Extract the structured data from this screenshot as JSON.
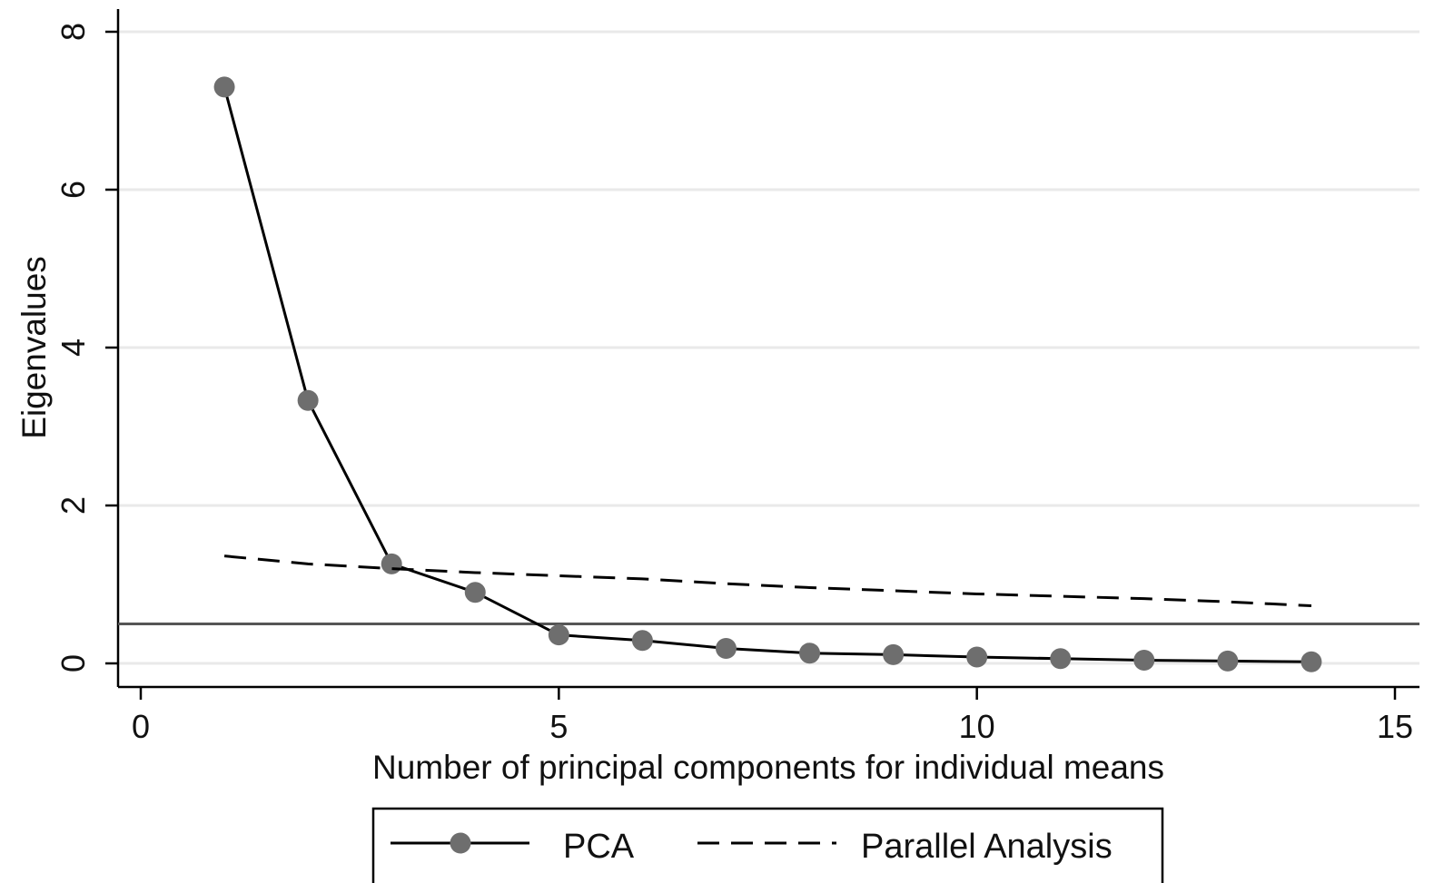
{
  "chart_data": {
    "type": "line",
    "title": "",
    "xlabel": "Number of principal components for individual means",
    "ylabel": "Eigenvalues",
    "xlim": [
      0,
      15
    ],
    "ylim": [
      0,
      8
    ],
    "xticks": [
      0,
      5,
      10,
      15
    ],
    "yticks": [
      0,
      2,
      4,
      6,
      8
    ],
    "xtick_labels": [
      "0",
      "5",
      "10",
      "15"
    ],
    "ytick_labels": [
      "0",
      "2",
      "4",
      "6",
      "8"
    ],
    "grid": "horizontal",
    "legend_position": "bottom",
    "reference_line": {
      "y": 0.5,
      "color": "#555555"
    },
    "series": [
      {
        "name": "PCA",
        "style": "solid-with-markers",
        "line_color": "#000000",
        "marker_color": "#6e6e6e",
        "x": [
          1,
          2,
          3,
          4,
          5,
          6,
          7,
          8,
          9,
          10,
          11,
          12,
          13,
          14
        ],
        "y": [
          7.3,
          3.33,
          1.26,
          0.9,
          0.36,
          0.29,
          0.19,
          0.13,
          0.11,
          0.08,
          0.06,
          0.04,
          0.03,
          0.02
        ]
      },
      {
        "name": "Parallel Analysis",
        "style": "dashed",
        "line_color": "#000000",
        "x": [
          1,
          2,
          3,
          4,
          5,
          6,
          7,
          8,
          9,
          10,
          11,
          12,
          13,
          14
        ],
        "y": [
          1.36,
          1.26,
          1.2,
          1.15,
          1.11,
          1.07,
          1.01,
          0.96,
          0.92,
          0.88,
          0.85,
          0.82,
          0.78,
          0.73
        ]
      }
    ]
  }
}
